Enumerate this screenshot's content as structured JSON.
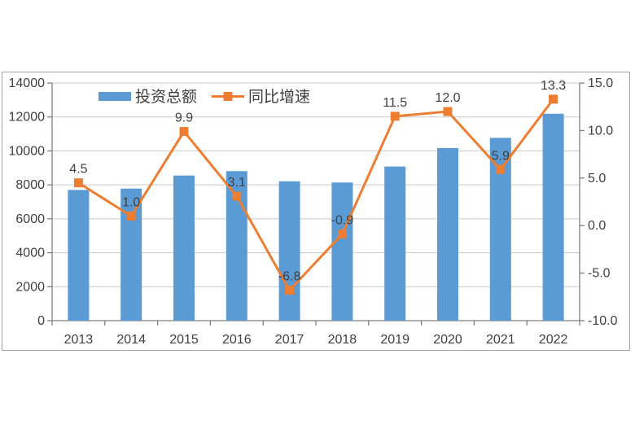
{
  "page": {
    "background": "#ffffff"
  },
  "chart": {
    "border_color": "#a3a3a3",
    "background": "#ffffff",
    "text_color": "#3f3f3f",
    "axis_color": "#7f7f7f",
    "gridline_color": "#c8c8c8"
  },
  "chart_data": {
    "type": "combo",
    "categories": [
      "2013",
      "2014",
      "2015",
      "2016",
      "2017",
      "2018",
      "2019",
      "2020",
      "2021",
      "2022"
    ],
    "series": [
      {
        "name": "投资总额",
        "type": "bar",
        "axis": "left",
        "color": "#5B9BD5",
        "values": [
          7700,
          7780,
          8550,
          8810,
          8210,
          8140,
          9080,
          10170,
          10770,
          12190
        ]
      },
      {
        "name": "同比增速",
        "type": "line",
        "axis": "right",
        "color": "#ED7D31",
        "marker": "square",
        "values": [
          4.5,
          1.0,
          9.9,
          3.1,
          -6.8,
          -0.9,
          11.5,
          12.0,
          5.9,
          13.3
        ],
        "data_labels": [
          "4.5",
          "1.0",
          "9.9",
          "3.1",
          "-6.8",
          "-0.9",
          "11.5",
          "12.0",
          "5.9",
          "13.3"
        ]
      }
    ],
    "left_axis": {
      "min": 0,
      "max": 14000,
      "step": 2000,
      "tick_labels": [
        "0",
        "2000",
        "4000",
        "6000",
        "8000",
        "10000",
        "12000",
        "14000"
      ]
    },
    "right_axis": {
      "min": -10,
      "max": 15,
      "step": 5,
      "tick_labels": [
        "-10.0",
        "-5.0",
        "0.0",
        "5.0",
        "10.0",
        "15.0"
      ]
    },
    "grid": true,
    "legend_position": "top"
  }
}
